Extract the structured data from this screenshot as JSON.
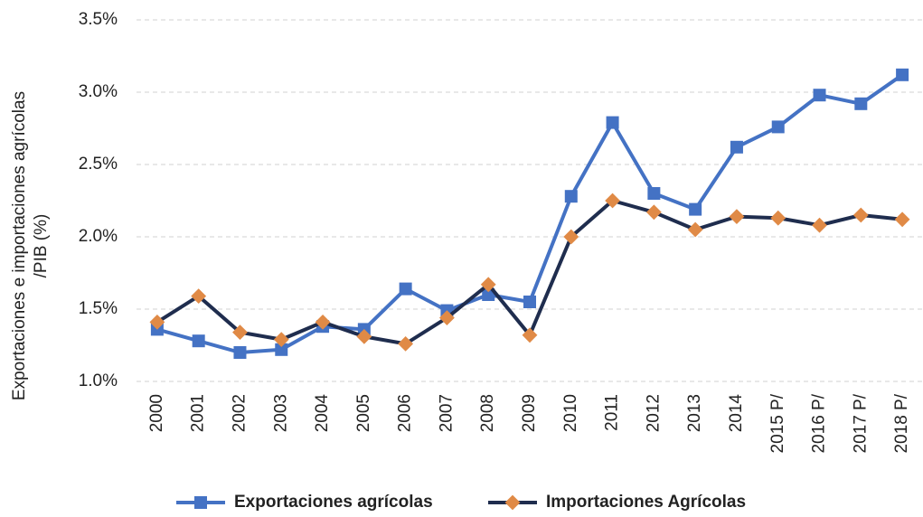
{
  "chart_data": {
    "type": "line",
    "ylabel": [
      "Exportaciones e importaciones agrícolas",
      "/PIB (%)"
    ],
    "categories": [
      "2000",
      "2001",
      "2002",
      "2003",
      "2004",
      "2005",
      "2006",
      "2007",
      "2008",
      "2009",
      "2010",
      "2011",
      "2012",
      "2013",
      "2014",
      "2015 P/",
      "2016 P/",
      "2017 P/",
      "2018 P/"
    ],
    "series": [
      {
        "name": "Exportaciones agrícolas",
        "color": "#4472c4",
        "marker": "square",
        "marker_color": "#4472c4",
        "values": [
          1.36,
          1.28,
          1.2,
          1.22,
          1.38,
          1.36,
          1.64,
          1.49,
          1.6,
          1.55,
          2.28,
          2.79,
          2.3,
          2.19,
          2.62,
          2.76,
          2.98,
          2.92,
          3.12
        ]
      },
      {
        "name": "Importaciones Agrícolas",
        "color": "#1f2d4e",
        "marker": "diamond",
        "marker_color": "#e08a46",
        "values": [
          1.41,
          1.59,
          1.34,
          1.29,
          1.41,
          1.31,
          1.26,
          1.44,
          1.67,
          1.32,
          2.0,
          2.25,
          2.17,
          2.05,
          2.14,
          2.13,
          2.08,
          2.15,
          2.12
        ]
      }
    ],
    "ylim": [
      1.0,
      3.5
    ],
    "yticks": [
      {
        "value": 1.0,
        "label": "1.0%"
      },
      {
        "value": 1.5,
        "label": "1.5%"
      },
      {
        "value": 2.0,
        "label": "2.0%"
      },
      {
        "value": 2.5,
        "label": "2.5%"
      },
      {
        "value": 3.0,
        "label": "3.0%"
      },
      {
        "value": 3.5,
        "label": "3.5%"
      }
    ],
    "grid": true,
    "legend": "bottom"
  }
}
